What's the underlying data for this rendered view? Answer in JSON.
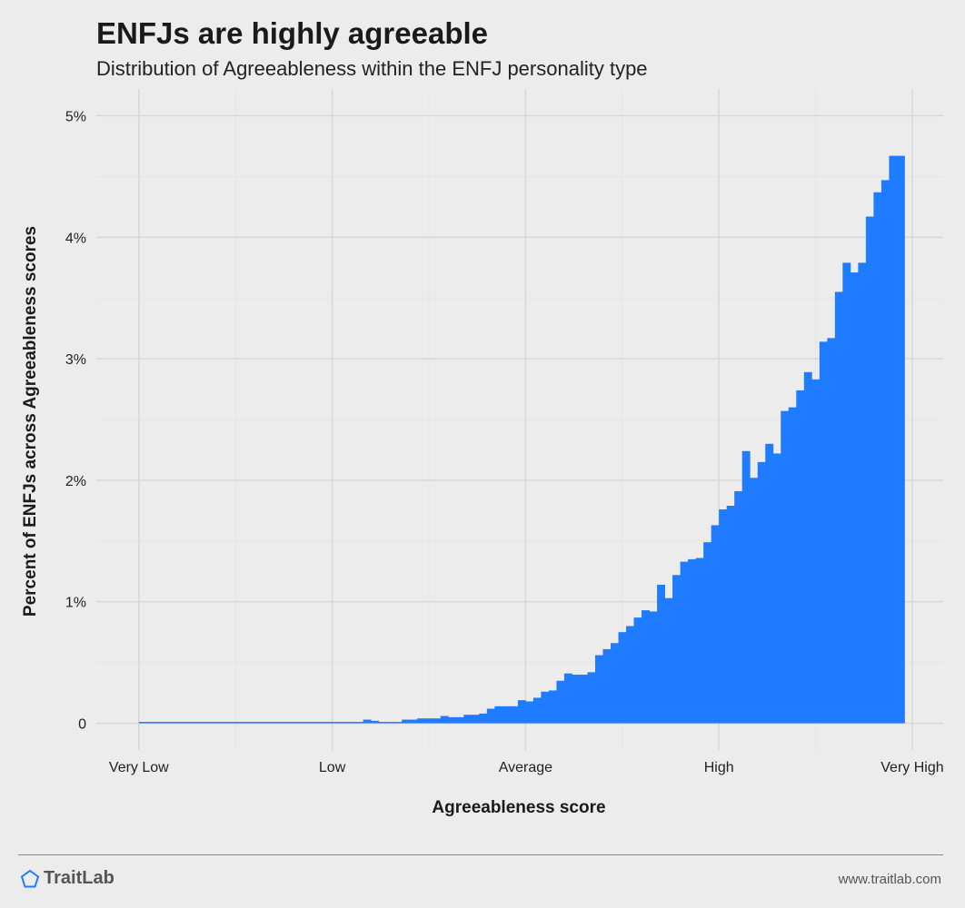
{
  "title": "ENFJs are highly agreeable",
  "subtitle": "Distribution of Agreeableness within the ENFJ personality type",
  "footer": {
    "brand": "TraitLab",
    "website": "www.traitlab.com"
  },
  "colors": {
    "bar": "#1f7bff",
    "background": "#ececec",
    "grid_major": "#d6d6d6",
    "grid_minor": "#e4e4e4"
  },
  "chart_data": {
    "type": "bar",
    "xlabel": "Agreeableness score",
    "ylabel": "Percent of ENFJs across Agreeableness scores",
    "x_ticks": [
      "Very Low",
      "Low",
      "Average",
      "High",
      "Very High"
    ],
    "x_tick_values": [
      0,
      25,
      50,
      75,
      100
    ],
    "xlim": [
      -5.5,
      104
    ],
    "y_ticks": [
      0,
      1,
      2,
      3,
      4,
      5
    ],
    "y_tick_labels": [
      "0",
      "1%",
      "2%",
      "3%",
      "4%",
      "5%"
    ],
    "ylim": [
      -0.22,
      5.22
    ],
    "grid": true,
    "bin_start": 0,
    "bin_width": 1,
    "values": [
      0.01,
      0.01,
      0.01,
      0.01,
      0.01,
      0.01,
      0.01,
      0.01,
      0.01,
      0.01,
      0.01,
      0.01,
      0.01,
      0.01,
      0.01,
      0.01,
      0.01,
      0.01,
      0.01,
      0.01,
      0.01,
      0.01,
      0.01,
      0.01,
      0.01,
      0.01,
      0.01,
      0.01,
      0.01,
      0.03,
      0.02,
      0.01,
      0.01,
      0.01,
      0.03,
      0.03,
      0.04,
      0.04,
      0.04,
      0.06,
      0.05,
      0.05,
      0.07,
      0.07,
      0.08,
      0.12,
      0.14,
      0.14,
      0.14,
      0.19,
      0.18,
      0.21,
      0.26,
      0.27,
      0.35,
      0.41,
      0.4,
      0.4,
      0.42,
      0.56,
      0.61,
      0.66,
      0.75,
      0.8,
      0.87,
      0.93,
      0.92,
      1.14,
      1.03,
      1.22,
      1.33,
      1.35,
      1.36,
      1.49,
      1.63,
      1.76,
      1.79,
      1.91,
      2.24,
      2.02,
      2.15,
      2.3,
      2.22,
      2.57,
      2.6,
      2.74,
      2.89,
      2.83,
      3.14,
      3.17,
      3.55,
      3.79,
      3.71,
      3.79,
      4.17,
      4.37,
      4.47,
      4.67,
      4.67
    ]
  }
}
